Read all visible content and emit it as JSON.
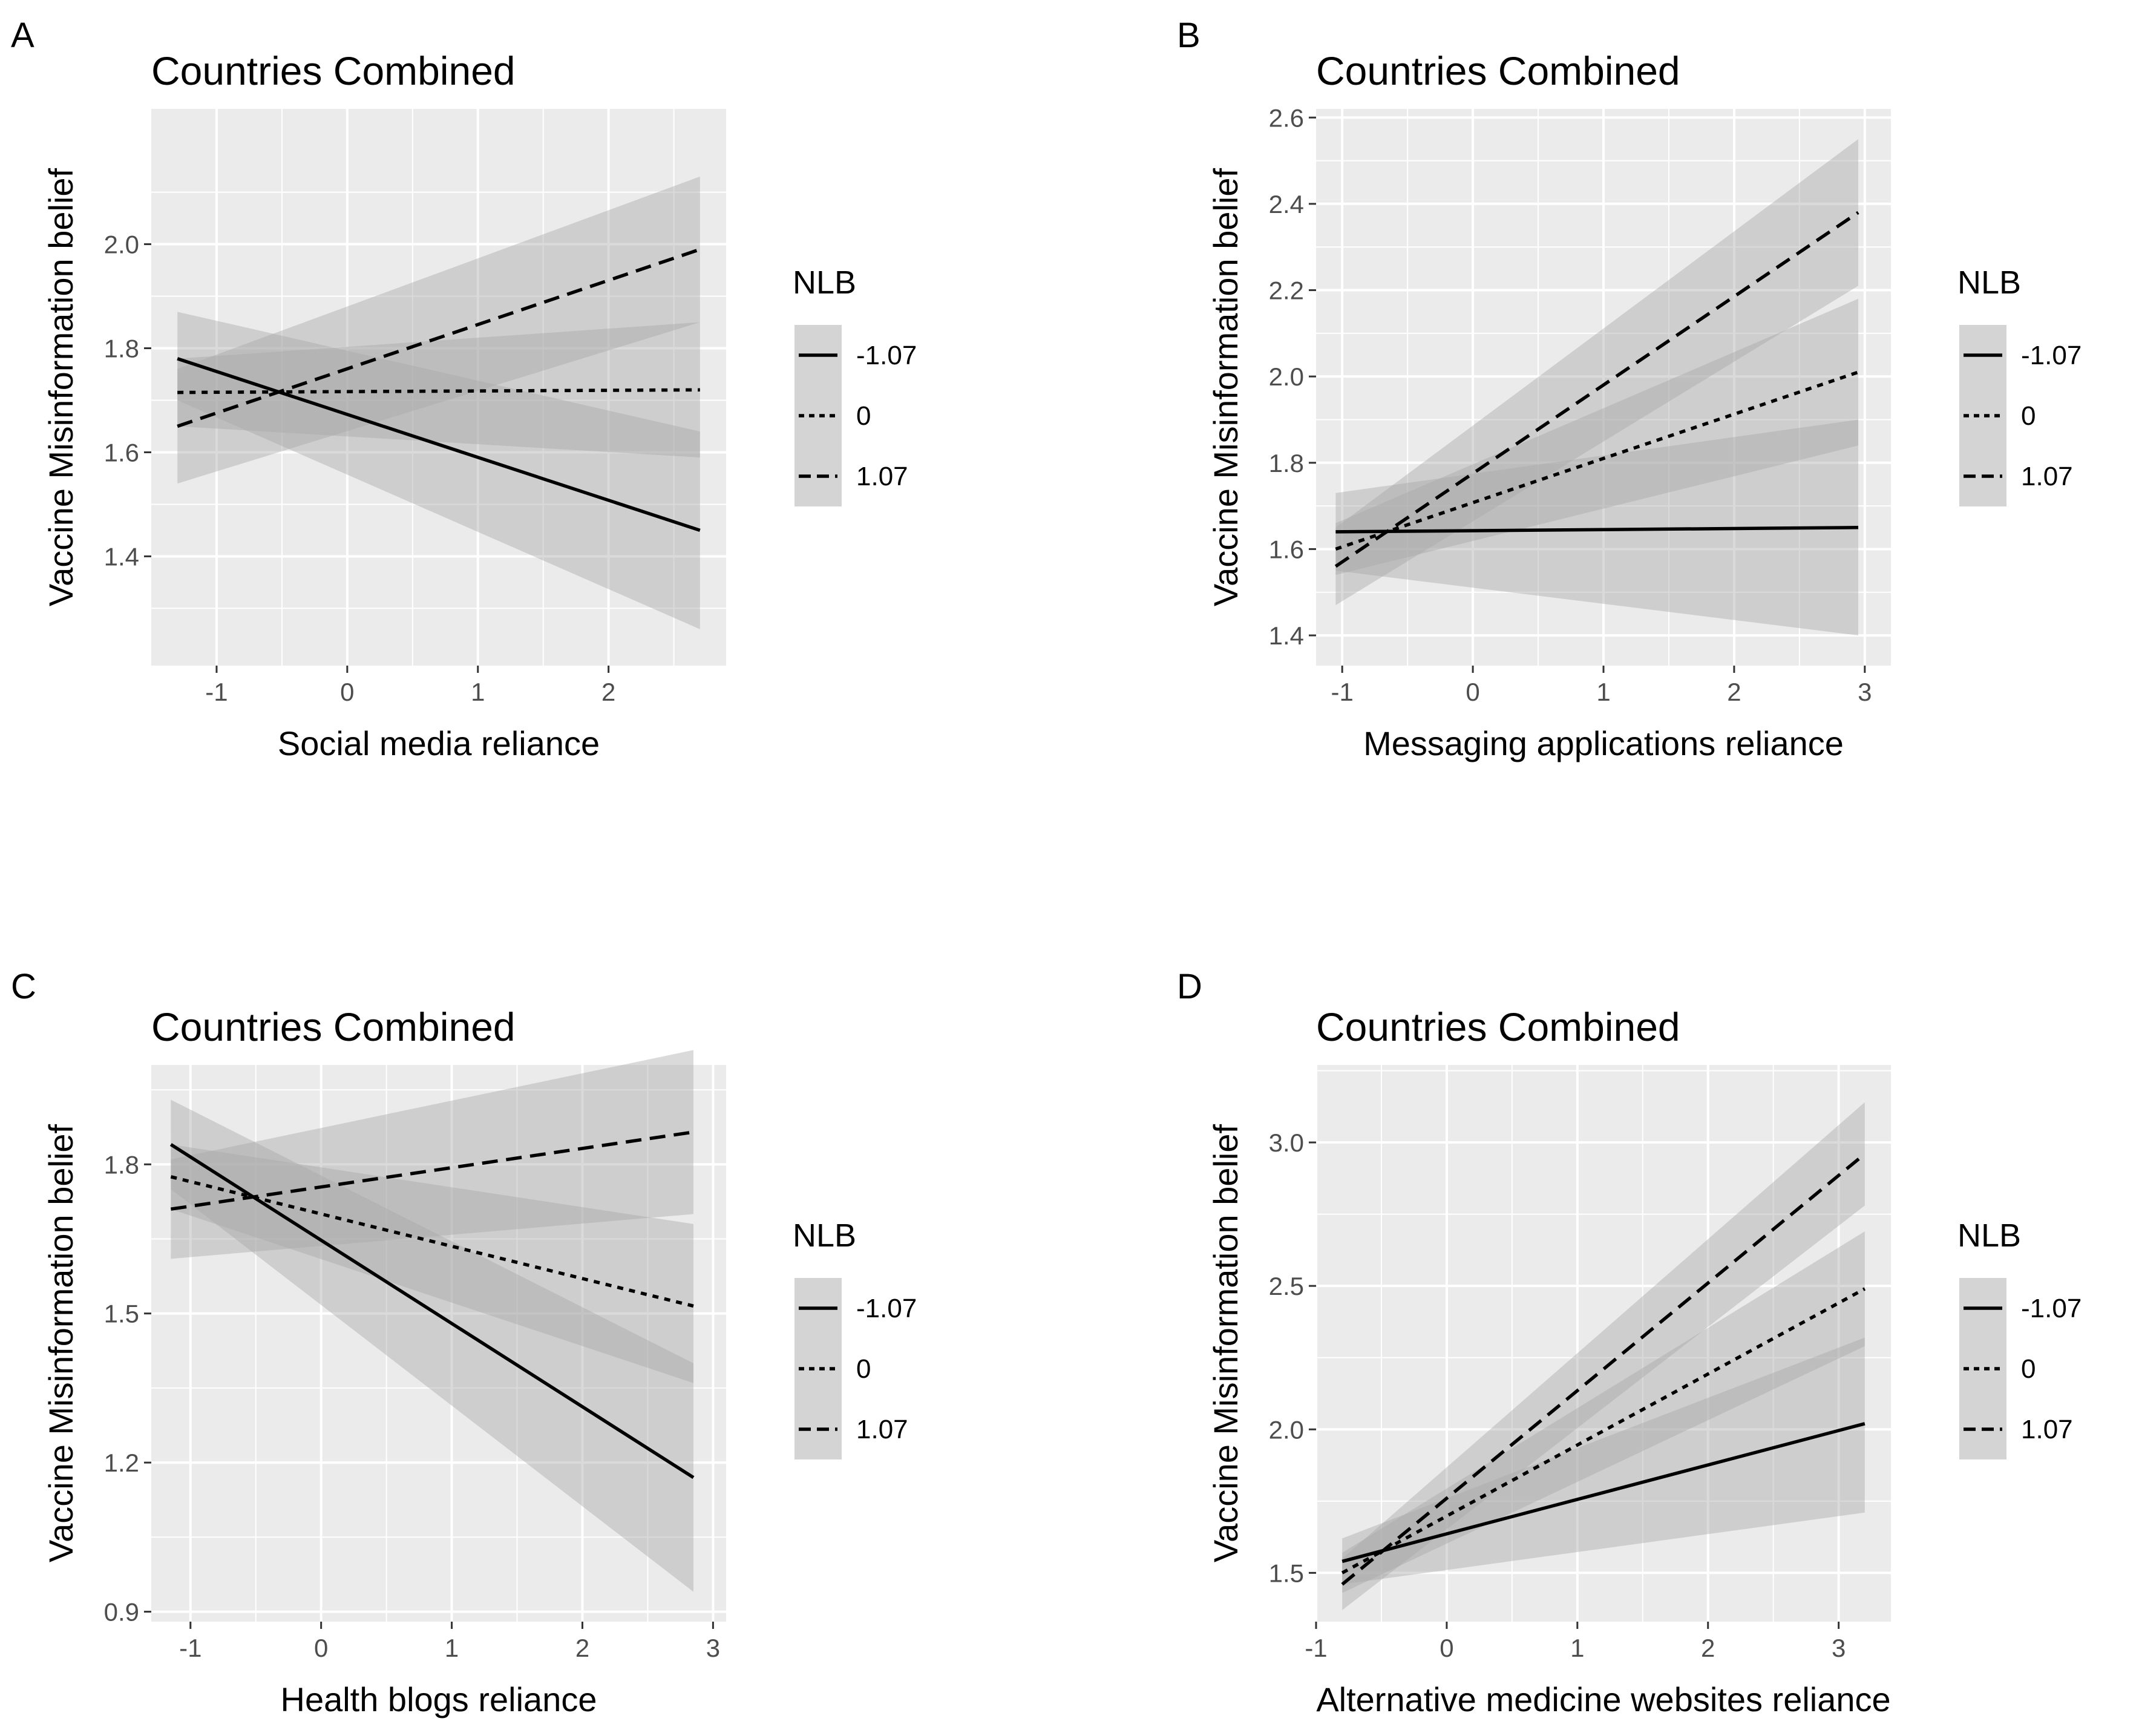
{
  "figure": {
    "legend_title": "NLB",
    "legend_levels": [
      "-1.07",
      "0",
      "1.07"
    ],
    "colors": {
      "panel_background": "#ebebeb",
      "gridline": "#ffffff",
      "line": "#000000",
      "ribbon": "#a6a6a6",
      "tick_text": "#4d4d4d"
    }
  },
  "chart_data": [
    {
      "panel": "A",
      "type": "line",
      "title": "Countries Combined",
      "xlabel": "Social media reliance",
      "ylabel": "Vaccine Misinformation belief",
      "xlim": [
        -1.5,
        2.9
      ],
      "ylim": [
        1.19,
        2.26
      ],
      "xticks": [
        -1,
        0,
        1,
        2
      ],
      "xtick_labels": [
        "-1",
        "0",
        "1",
        "2"
      ],
      "yticks": [
        1.4,
        1.6,
        1.8,
        2.0
      ],
      "ytick_labels": [
        "1.4",
        "1.6",
        "1.8",
        "2.0"
      ],
      "x": [
        -1.3,
        2.7
      ],
      "series": [
        {
          "name": "-1.07",
          "linetype": "solid",
          "values": [
            1.78,
            1.45
          ],
          "ci_lower": [
            1.7,
            1.26
          ],
          "ci_upper": [
            1.87,
            1.64
          ]
        },
        {
          "name": "0",
          "linetype": "dotted",
          "values": [
            1.715,
            1.72
          ],
          "ci_lower": [
            1.65,
            1.59
          ],
          "ci_upper": [
            1.78,
            1.85
          ]
        },
        {
          "name": "1.07",
          "linetype": "dashed",
          "values": [
            1.65,
            1.99
          ],
          "ci_lower": [
            1.54,
            1.85
          ],
          "ci_upper": [
            1.76,
            2.13
          ]
        }
      ],
      "legend": {
        "title": "NLB",
        "placement": "right"
      }
    },
    {
      "panel": "B",
      "type": "line",
      "title": "Countries Combined",
      "xlabel": "Messaging applications reliance",
      "ylabel": "Vaccine Misinformation belief",
      "xlim": [
        -1.2,
        3.2
      ],
      "ylim": [
        1.33,
        2.62
      ],
      "xticks": [
        -1,
        0,
        1,
        2,
        3
      ],
      "xtick_labels": [
        "-1",
        "0",
        "1",
        "2",
        "3"
      ],
      "yticks": [
        1.4,
        1.6,
        1.8,
        2.0,
        2.2,
        2.4,
        2.6
      ],
      "ytick_labels": [
        "1.4",
        "1.6",
        "1.8",
        "2.0",
        "2.2",
        "2.4",
        "2.6"
      ],
      "x": [
        -1.05,
        2.95
      ],
      "series": [
        {
          "name": "-1.07",
          "linetype": "solid",
          "values": [
            1.64,
            1.65
          ],
          "ci_lower": [
            1.55,
            1.4
          ],
          "ci_upper": [
            1.73,
            1.9
          ]
        },
        {
          "name": "0",
          "linetype": "dotted",
          "values": [
            1.6,
            2.01
          ],
          "ci_lower": [
            1.54,
            1.84
          ],
          "ci_upper": [
            1.66,
            2.18
          ]
        },
        {
          "name": "1.07",
          "linetype": "dashed",
          "values": [
            1.56,
            2.38
          ],
          "ci_lower": [
            1.47,
            2.21
          ],
          "ci_upper": [
            1.65,
            2.55
          ]
        }
      ],
      "legend": {
        "title": "NLB",
        "placement": "right"
      }
    },
    {
      "panel": "C",
      "type": "line",
      "title": "Countries Combined",
      "xlabel": "Health blogs reliance",
      "ylabel": "Vaccine Misinformation belief",
      "xlim": [
        -1.3,
        3.1
      ],
      "ylim": [
        0.88,
        2.0
      ],
      "xticks": [
        -1,
        0,
        1,
        2,
        3
      ],
      "xtick_labels": [
        "-1",
        "0",
        "1",
        "2",
        "3"
      ],
      "yticks": [
        0.9,
        1.2,
        1.5,
        1.8
      ],
      "ytick_labels": [
        "0.9",
        "1.2",
        "1.5",
        "1.8"
      ],
      "x": [
        -1.15,
        2.85
      ],
      "series": [
        {
          "name": "-1.07",
          "linetype": "solid",
          "values": [
            1.84,
            1.17
          ],
          "ci_lower": [
            1.75,
            0.94
          ],
          "ci_upper": [
            1.93,
            1.4
          ]
        },
        {
          "name": "0",
          "linetype": "dotted",
          "values": [
            1.775,
            1.515
          ],
          "ci_lower": [
            1.71,
            1.36
          ],
          "ci_upper": [
            1.84,
            1.68
          ]
        },
        {
          "name": "1.07",
          "linetype": "dashed",
          "values": [
            1.71,
            1.865
          ],
          "ci_lower": [
            1.61,
            1.7
          ],
          "ci_upper": [
            1.81,
            2.03
          ]
        }
      ],
      "legend": {
        "title": "NLB",
        "placement": "right"
      }
    },
    {
      "panel": "D",
      "type": "line",
      "title": "Countries Combined",
      "xlabel": "Alternative medicine websites reliance",
      "ylabel": "Vaccine Misinformation belief",
      "xlim": [
        -1.0,
        3.4
      ],
      "ylim": [
        1.33,
        3.27
      ],
      "xticks": [
        -1,
        0,
        1,
        2,
        3
      ],
      "xtick_labels": [
        "-1",
        "0",
        "1",
        "2",
        "3"
      ],
      "yticks": [
        1.5,
        2.0,
        2.5,
        3.0
      ],
      "ytick_labels": [
        "1.5",
        "2.0",
        "2.5",
        "3.0"
      ],
      "x": [
        -0.8,
        3.2
      ],
      "series": [
        {
          "name": "-1.07",
          "linetype": "solid",
          "values": [
            1.54,
            2.02
          ],
          "ci_lower": [
            1.46,
            1.71
          ],
          "ci_upper": [
            1.62,
            2.32
          ]
        },
        {
          "name": "0",
          "linetype": "dotted",
          "values": [
            1.5,
            2.49
          ],
          "ci_lower": [
            1.43,
            2.29
          ],
          "ci_upper": [
            1.57,
            2.69
          ]
        },
        {
          "name": "1.07",
          "linetype": "dashed",
          "values": [
            1.46,
            2.96
          ],
          "ci_lower": [
            1.37,
            2.78
          ],
          "ci_upper": [
            1.55,
            3.14
          ]
        }
      ],
      "legend": {
        "title": "NLB",
        "placement": "right"
      }
    }
  ]
}
